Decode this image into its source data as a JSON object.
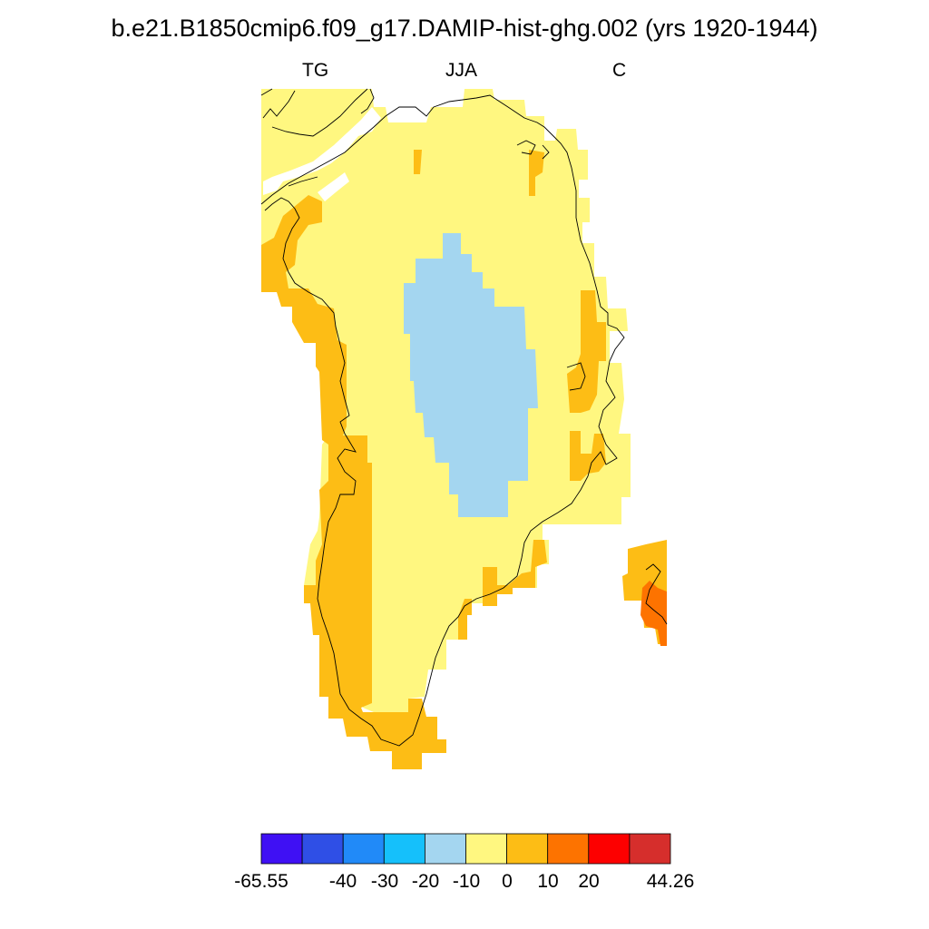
{
  "title": "b.e21.B1850cmip6.f09_g17.DAMIP-hist-ghg.002 (yrs 1920-1944)",
  "subtitle_left": "TG",
  "subtitle_center": "JJA",
  "subtitle_right": "C",
  "colorbar": {
    "min_label": "-65.55",
    "max_label": "44.26",
    "tick_labels": [
      "-40",
      "-30",
      "-20",
      "-10",
      "0",
      "10",
      "20"
    ],
    "colors": [
      "#3f10f4",
      "#2f4fe6",
      "#218af8",
      "#15c0fb",
      "#a4d6f0",
      "#fff780",
      "#fdbd15",
      "#fd7300",
      "#fd0000",
      "#d62e2c"
    ]
  },
  "map_colors": {
    "land_base": "#fff780",
    "interior_cold": "#a4d6f0",
    "coastal_warm": "#fdbd15",
    "iceland_warm": "#fd7300",
    "coastline": "#000000"
  }
}
